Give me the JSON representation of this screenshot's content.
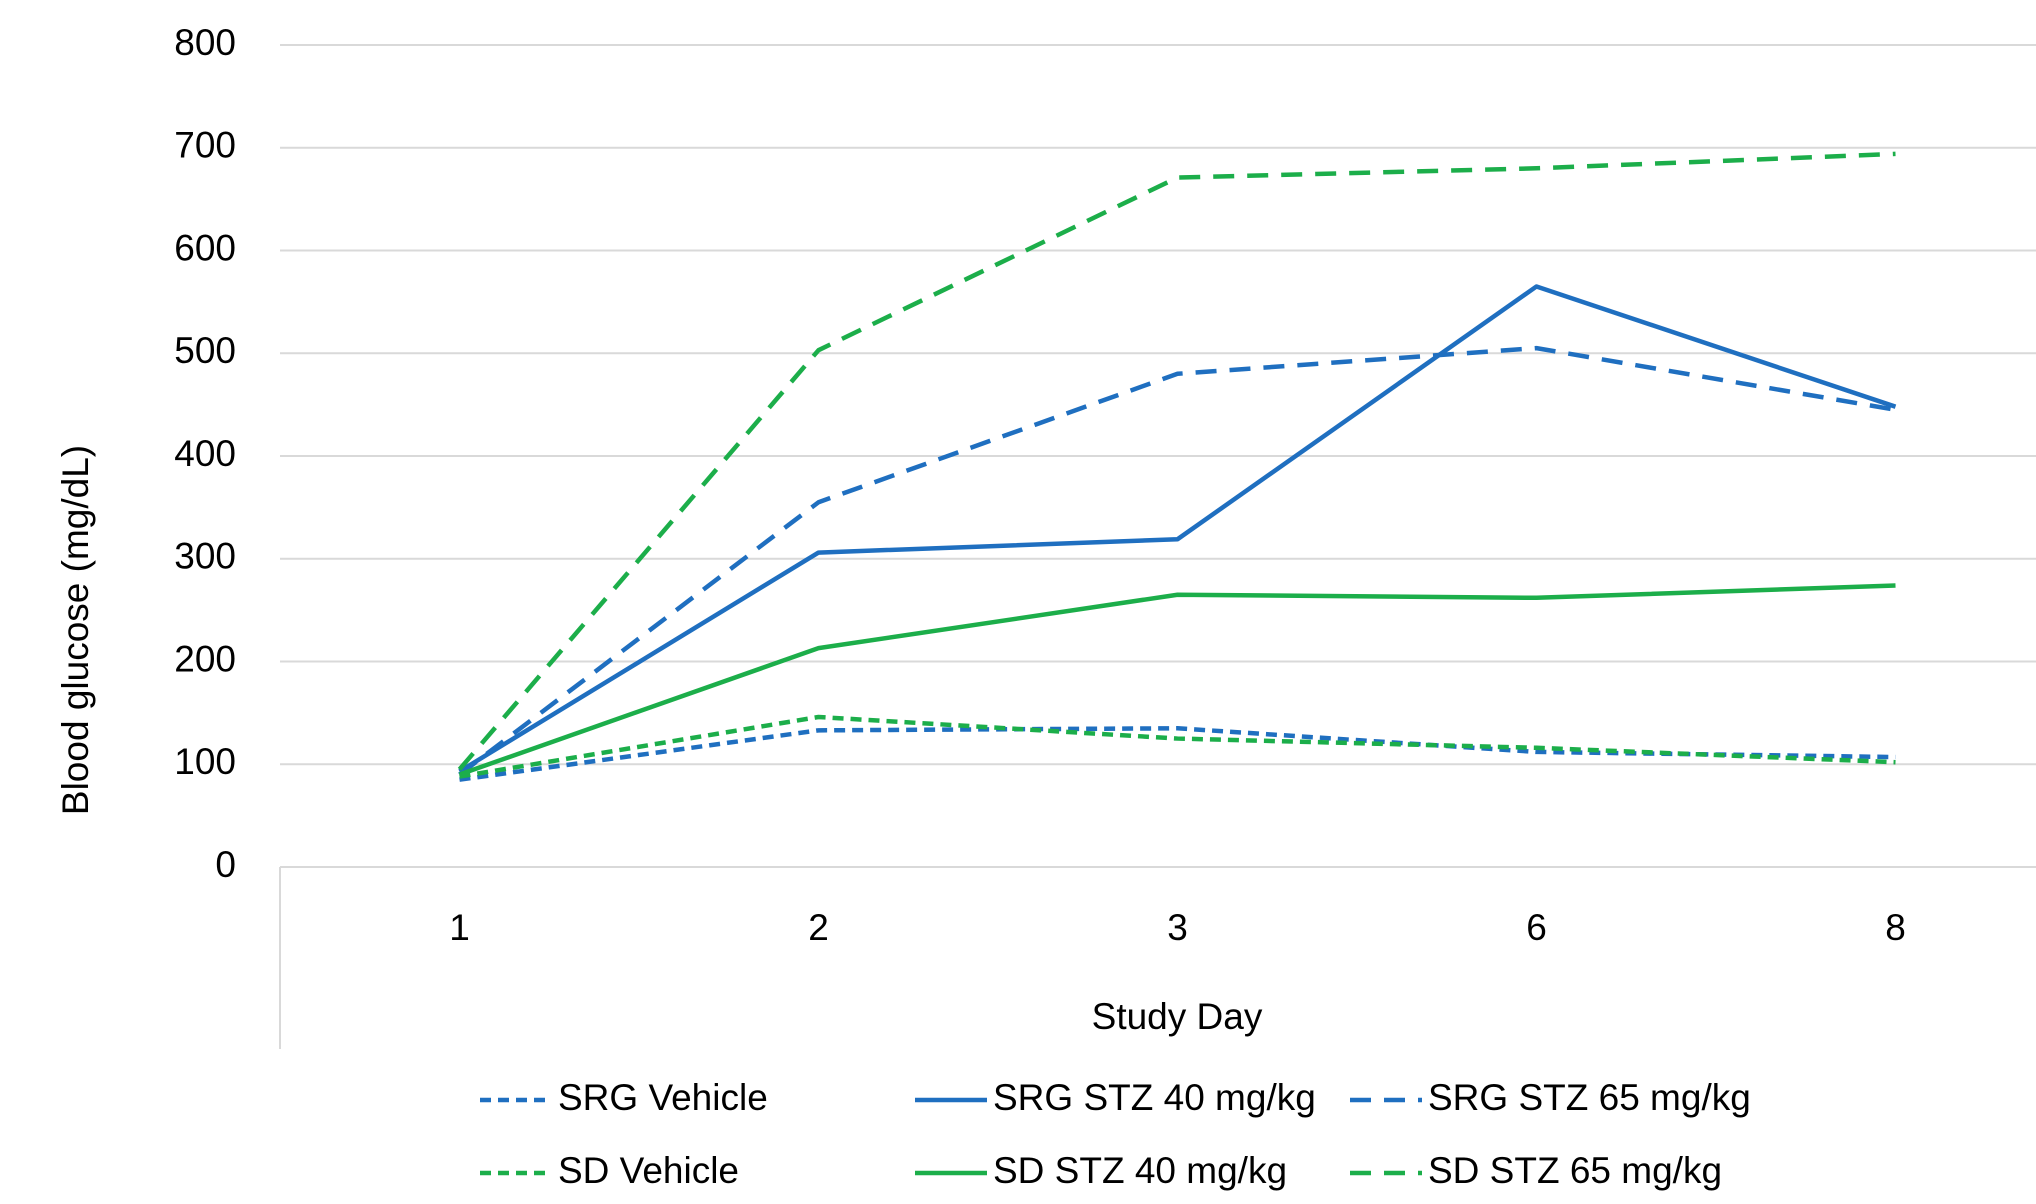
{
  "chart_data": {
    "type": "line",
    "x_label": "Study Day",
    "y_label": "Blood glucose (mg/dL)",
    "categories": [
      "1",
      "2",
      "3",
      "6",
      "8"
    ],
    "ylim": [
      0,
      800
    ],
    "yticks": [
      0,
      100,
      200,
      300,
      400,
      500,
      600,
      700,
      800
    ],
    "grid": true,
    "legend": "bottom",
    "series": [
      {
        "name": "SRG Vehicle",
        "color": "#1f6fc0",
        "style": "dotted",
        "values": [
          85,
          133,
          135,
          112,
          107
        ]
      },
      {
        "name": "SRG STZ 40 mg/kg",
        "color": "#1f6fc0",
        "style": "solid",
        "values": [
          93,
          306,
          319,
          565,
          448
        ]
      },
      {
        "name": "SRG STZ 65 mg/kg",
        "color": "#1f6fc0",
        "style": "dashed",
        "values": [
          90,
          355,
          480,
          505,
          445
        ]
      },
      {
        "name": "SD Vehicle",
        "color": "#1cae4a",
        "style": "dotted",
        "values": [
          88,
          146,
          125,
          116,
          102
        ]
      },
      {
        "name": "SD STZ 40 mg/kg",
        "color": "#1cae4a",
        "style": "solid",
        "values": [
          90,
          213,
          265,
          262,
          274
        ]
      },
      {
        "name": "SD STZ 65 mg/kg",
        "color": "#1cae4a",
        "style": "dashed",
        "values": [
          95,
          503,
          671,
          680,
          694
        ]
      }
    ]
  }
}
